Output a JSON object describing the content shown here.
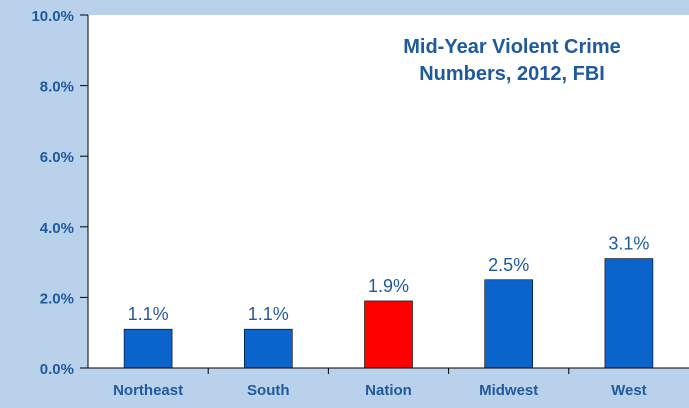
{
  "chart_data": {
    "type": "bar",
    "title_lines": [
      "Mid-Year Violent Crime",
      "Numbers, 2012, FBI"
    ],
    "xlabel": "",
    "ylabel": "",
    "categories": [
      "Northeast",
      "South",
      "Nation",
      "Midwest",
      "West"
    ],
    "values": [
      1.1,
      1.1,
      1.9,
      2.5,
      3.1
    ],
    "value_labels": [
      "1.1%",
      "1.1%",
      "1.9%",
      "2.5%",
      "3.1%"
    ],
    "ylim": [
      0,
      10
    ],
    "yticks": [
      0,
      2,
      4,
      6,
      8,
      10
    ],
    "ytick_labels": [
      "0.0%",
      "2.0%",
      "4.0%",
      "6.0%",
      "8.0%",
      "10.0%"
    ],
    "grid": false,
    "legend": "none"
  },
  "colors": {
    "background": "#b9d1ea",
    "plot_area": "#ffffff",
    "bar": "#0a64cc",
    "highlight_bar": "#ff0000",
    "highlight_category": "Nation",
    "text": "#1f5a9c",
    "axis": "#000000"
  }
}
